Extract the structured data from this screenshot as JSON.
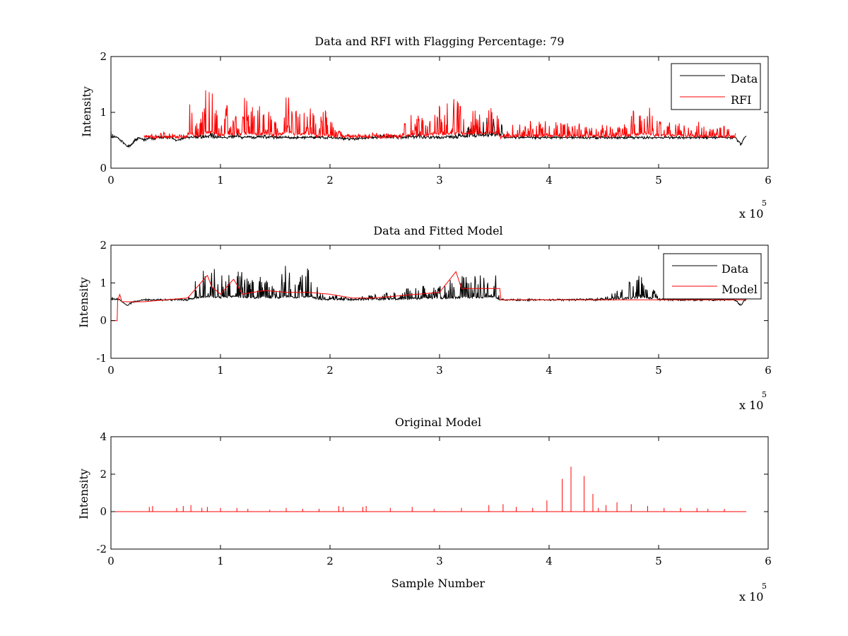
{
  "chart_data": [
    {
      "type": "line",
      "title": "Data and RFI with Flagging Percentage: 79",
      "xlabel": "",
      "ylabel": "Intensity",
      "xlim": [
        0,
        6
      ],
      "ylim": [
        0,
        2
      ],
      "x_ticks": [
        "0",
        "1",
        "2",
        "3",
        "4",
        "5",
        "6"
      ],
      "y_ticks": [
        "0",
        "1",
        "2"
      ],
      "x_multiplier": "x 10",
      "x_multiplier_exp": "5",
      "legend": {
        "position": "top-right",
        "entries": [
          "Data",
          "RFI"
        ]
      },
      "series": [
        {
          "name": "Data",
          "color": "#000000",
          "x": [
            0.0,
            0.03,
            0.06,
            0.09,
            0.12,
            0.15,
            0.18,
            0.22,
            0.26,
            0.3,
            0.35,
            0.4,
            0.45,
            0.5,
            0.55,
            0.6,
            0.7,
            0.8,
            0.88,
            0.92,
            0.96,
            1.0,
            1.05,
            1.1,
            1.15,
            1.2,
            1.4,
            1.6,
            1.8,
            2.0,
            2.2,
            2.35,
            2.45,
            2.5,
            2.6,
            2.65,
            2.7,
            2.8,
            2.9,
            3.0,
            3.1,
            3.2,
            3.3,
            3.4,
            3.5,
            3.55,
            3.6,
            4.0,
            4.5,
            5.0,
            5.5,
            5.7,
            5.75,
            5.8
          ],
          "y": [
            0.7,
            0.6,
            0.55,
            0.5,
            0.45,
            0.38,
            0.42,
            0.5,
            0.55,
            0.5,
            0.55,
            0.52,
            0.6,
            0.55,
            0.55,
            0.5,
            0.55,
            0.6,
            0.75,
            0.7,
            0.6,
            0.55,
            0.55,
            0.6,
            0.7,
            0.55,
            0.6,
            0.55,
            0.55,
            0.55,
            0.52,
            0.55,
            0.6,
            0.65,
            0.6,
            0.55,
            0.6,
            0.62,
            0.6,
            0.55,
            0.6,
            0.65,
            0.8,
            0.9,
            0.95,
            0.95,
            0.55,
            0.55,
            0.55,
            0.55,
            0.55,
            0.55,
            0.42,
            0.6
          ]
        },
        {
          "name": "RFI",
          "color": "#ff0000",
          "x": [
            0.3,
            0.5,
            0.68,
            0.72,
            0.8,
            0.86,
            0.93,
            1.0,
            1.06,
            1.12,
            1.2,
            1.31,
            1.4,
            1.5,
            1.61,
            1.7,
            1.79,
            1.88,
            1.95,
            2.05,
            2.2,
            2.4,
            2.6,
            2.75,
            2.85,
            2.95,
            3.05,
            3.15,
            3.2,
            3.25,
            3.35,
            3.45,
            3.52,
            3.56,
            3.7,
            3.9,
            4.1,
            4.3,
            4.5,
            4.7,
            4.88,
            4.95,
            5.1,
            5.3,
            5.5,
            5.7
          ],
          "y": [
            0.6,
            0.65,
            0.6,
            1.3,
            0.7,
            1.4,
            1.5,
            0.7,
            1.3,
            0.9,
            1.3,
            1.1,
            1.2,
            0.9,
            1.55,
            1.0,
            1.4,
            0.8,
            1.1,
            0.7,
            0.6,
            0.65,
            0.6,
            1.0,
            0.9,
            1.1,
            1.2,
            1.3,
            1.1,
            1.2,
            1.35,
            1.3,
            1.5,
            0.55,
            0.85,
            0.85,
            0.85,
            0.8,
            0.8,
            0.85,
            1.35,
            0.9,
            0.9,
            0.85,
            0.8,
            0.7
          ]
        }
      ]
    },
    {
      "type": "line",
      "title": "Data and Fitted Model",
      "xlabel": "",
      "ylabel": "Intensity",
      "xlim": [
        0,
        6
      ],
      "ylim": [
        -1,
        2
      ],
      "x_ticks": [
        "0",
        "1",
        "2",
        "3",
        "4",
        "5",
        "6"
      ],
      "y_ticks": [
        "-1",
        "0",
        "1",
        "2"
      ],
      "x_multiplier": "x 10",
      "x_multiplier_exp": "5",
      "legend": {
        "position": "top-right",
        "entries": [
          "Data",
          "Model"
        ]
      },
      "series": [
        {
          "name": "Data",
          "color": "#000000",
          "x": [
            0.0,
            0.03,
            0.06,
            0.1,
            0.15,
            0.2,
            0.3,
            0.5,
            0.7,
            0.8,
            0.9,
            0.95,
            1.0,
            1.1,
            1.2,
            1.3,
            1.4,
            1.5,
            1.6,
            1.7,
            1.8,
            1.9,
            2.0,
            2.2,
            2.4,
            2.6,
            2.8,
            3.0,
            3.1,
            3.2,
            3.3,
            3.4,
            3.5,
            3.55,
            3.6,
            4.0,
            4.5,
            4.88,
            5.0,
            5.5,
            5.7,
            5.75,
            5.8
          ],
          "y": [
            0.6,
            0.75,
            0.6,
            0.5,
            0.4,
            0.5,
            0.55,
            0.55,
            0.6,
            1.3,
            1.5,
            1.4,
            1.2,
            1.4,
            1.3,
            1.1,
            1.2,
            1.0,
            1.5,
            1.1,
            1.4,
            0.8,
            0.7,
            0.6,
            0.7,
            0.8,
            0.9,
            1.0,
            1.1,
            1.2,
            1.2,
            1.3,
            1.5,
            0.55,
            0.55,
            0.55,
            0.6,
            1.3,
            0.6,
            0.55,
            0.55,
            0.4,
            0.6
          ]
        },
        {
          "name": "Model",
          "color": "#ff0000",
          "x": [
            0.0,
            0.06,
            0.06,
            0.08,
            0.1,
            0.12,
            0.3,
            0.5,
            0.7,
            0.88,
            0.92,
            1.0,
            1.12,
            1.2,
            1.4,
            1.6,
            1.8,
            2.0,
            2.2,
            2.4,
            2.6,
            2.8,
            3.0,
            3.15,
            3.2,
            3.3,
            3.55,
            3.56,
            4.0,
            4.5,
            5.0,
            5.8
          ],
          "y": [
            0.0,
            0.0,
            0.5,
            0.7,
            0.5,
            0.5,
            0.5,
            0.55,
            0.6,
            1.2,
            0.9,
            0.7,
            1.1,
            0.7,
            0.8,
            0.75,
            0.75,
            0.7,
            0.6,
            0.6,
            0.65,
            0.7,
            0.75,
            1.3,
            0.85,
            0.85,
            0.85,
            0.55,
            0.55,
            0.55,
            0.55,
            0.55
          ]
        }
      ]
    },
    {
      "type": "line",
      "title": "Original Model",
      "xlabel": "Sample Number",
      "ylabel": "Intensity",
      "xlim": [
        0,
        6
      ],
      "ylim": [
        -2,
        4
      ],
      "x_ticks": [
        "0",
        "1",
        "2",
        "3",
        "4",
        "5",
        "6"
      ],
      "y_ticks": [
        "-2",
        "0",
        "2",
        "4"
      ],
      "x_multiplier": "x 10",
      "x_multiplier_exp": "5",
      "series": [
        {
          "color": "#ff0000",
          "baseline": 0.0,
          "x_end": 5.8,
          "spikes_x": [
            0.35,
            0.38,
            0.6,
            0.66,
            0.73,
            0.83,
            0.88,
            1.0,
            1.15,
            1.25,
            1.45,
            1.6,
            1.75,
            1.9,
            2.08,
            2.12,
            2.3,
            2.33,
            2.55,
            2.75,
            2.95,
            3.2,
            3.45,
            3.58,
            3.7,
            3.85,
            3.98,
            4.12,
            4.2,
            4.32,
            4.4,
            4.45,
            4.52,
            4.62,
            4.75,
            4.9,
            5.05,
            5.2,
            5.35,
            5.45,
            5.6
          ],
          "spikes_y": [
            0.25,
            0.3,
            0.2,
            0.3,
            0.35,
            0.2,
            0.25,
            0.2,
            0.2,
            0.15,
            0.1,
            0.2,
            0.15,
            0.15,
            0.3,
            0.25,
            0.25,
            0.3,
            0.2,
            0.25,
            0.15,
            0.2,
            0.35,
            0.4,
            0.25,
            0.2,
            0.6,
            1.75,
            2.4,
            1.9,
            0.95,
            0.2,
            0.35,
            0.5,
            0.4,
            0.3,
            0.2,
            0.2,
            0.2,
            0.15,
            0.15
          ]
        }
      ]
    }
  ]
}
